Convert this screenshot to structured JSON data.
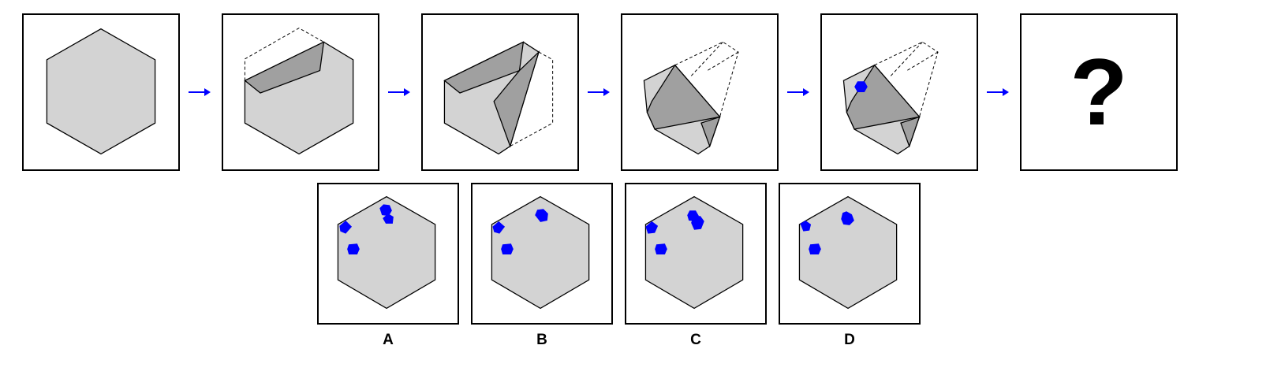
{
  "question_mark": "?",
  "options": [
    {
      "label": "A"
    },
    {
      "label": "B"
    },
    {
      "label": "C"
    },
    {
      "label": "D"
    }
  ],
  "colors": {
    "paper": "#d3d3d3",
    "fold": "#a0a0a0",
    "hole": "#0000ff",
    "arrow": "#0000ff",
    "outline": "#000000"
  }
}
